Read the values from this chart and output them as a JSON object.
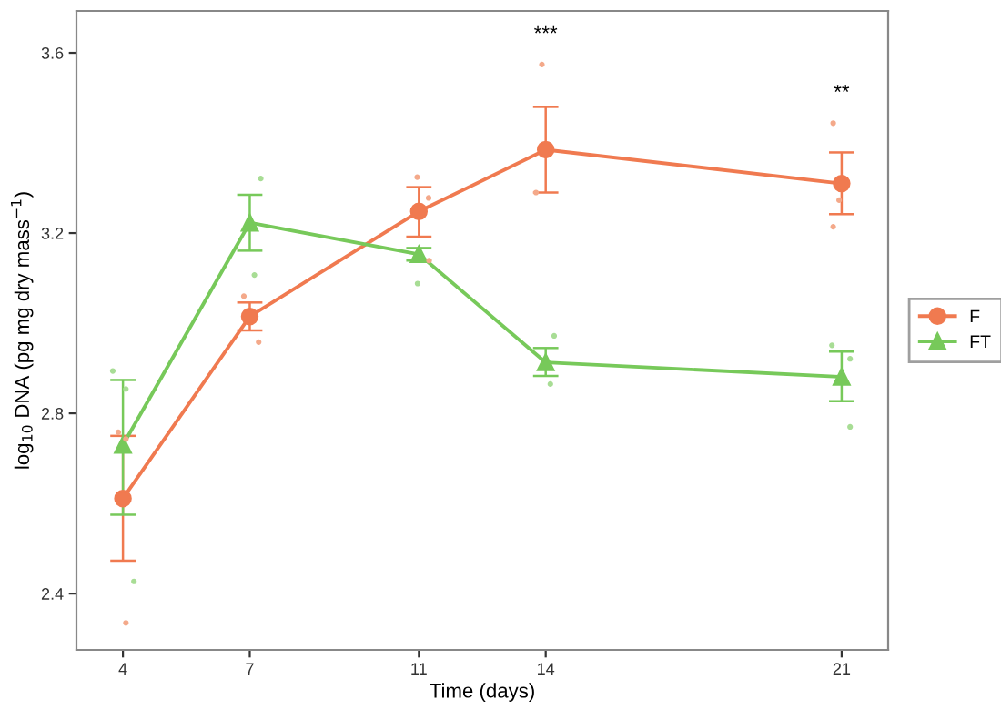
{
  "chart_data": {
    "type": "line",
    "xlabel": "Time (days)",
    "ylabel": "log$_{10}$ DNA (pg mg dry mass$^{−1}$)",
    "x": [
      4,
      7,
      11,
      14,
      21
    ],
    "xlim": [
      2.9,
      22.1
    ],
    "ylim": [
      2.275,
      3.693
    ],
    "xticks": [
      4,
      7,
      11,
      14,
      21
    ],
    "yticks": [
      2.4,
      2.8,
      3.2,
      3.6
    ],
    "grid": false,
    "legend": "right",
    "series": [
      {
        "type": "scatter",
        "color": "#f4a98a",
        "marker": "circle",
        "x": [
          3.89,
          4.07,
          4.07,
          6.86,
          7.21,
          10.96,
          11.23,
          11.24,
          13.91,
          13.77,
          20.8,
          20.94,
          20.8
        ],
        "values": [
          2.758,
          2.743,
          2.335,
          3.06,
          2.958,
          3.324,
          3.278,
          3.139,
          3.574,
          3.29,
          3.444,
          3.273,
          3.214
        ]
      },
      {
        "type": "scatter",
        "color": "#a8dd95",
        "marker": "circle",
        "x": [
          3.76,
          4.07,
          4.26,
          7.26,
          7.11,
          10.97,
          14.2,
          14.11,
          20.77,
          21.2,
          21.2
        ],
        "values": [
          2.894,
          2.854,
          2.427,
          3.321,
          3.107,
          3.088,
          2.972,
          2.865,
          2.951,
          2.921,
          2.77
        ]
      },
      {
        "name": "F",
        "color": "#f07a50",
        "marker": "circle",
        "values": [
          2.611,
          3.015,
          3.248,
          3.385,
          3.31
        ],
        "errors": [
          [
            2.473,
            2.75
          ],
          [
            2.984,
            3.046
          ],
          [
            3.192,
            3.302
          ],
          [
            3.29,
            3.48
          ],
          [
            3.242,
            3.379
          ]
        ]
      },
      {
        "name": "FT",
        "color": "#77c95a",
        "marker": "triangle",
        "values": [
          2.73,
          3.223,
          3.153,
          2.913,
          2.881
        ],
        "errors": [
          [
            2.575,
            2.874
          ],
          [
            3.161,
            3.285
          ],
          [
            3.139,
            3.167
          ],
          [
            2.883,
            2.945
          ],
          [
            2.827,
            2.937
          ]
        ]
      }
    ],
    "annotations": [
      "***",
      "**"
    ]
  }
}
